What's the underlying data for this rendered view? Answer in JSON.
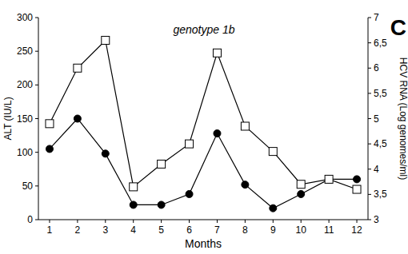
{
  "chart_data": {
    "type": "line",
    "title": "genotype 1b",
    "annotations": [
      "C"
    ],
    "x_label": "Months",
    "y_label": "ALT (IU/L)",
    "y2_label": "HCV RNA (Log genomes/ml)",
    "x": [
      1,
      2,
      3,
      4,
      5,
      6,
      7,
      8,
      9,
      10,
      11,
      12
    ],
    "xlim": [
      0.6,
      12.4
    ],
    "xticks": [
      1,
      2,
      3,
      4,
      5,
      6,
      7,
      8,
      9,
      10,
      11,
      12
    ],
    "ylim": [
      0,
      300
    ],
    "yticks": [
      0,
      50,
      100,
      150,
      200,
      250,
      300
    ],
    "y2lim": [
      3,
      7
    ],
    "y2ticks": [
      3,
      {
        "value": 3.5,
        "label": "3,5"
      },
      4,
      {
        "value": 4.5,
        "label": "4,5"
      },
      5,
      {
        "value": 5.5,
        "label": "5,5"
      },
      6,
      {
        "value": 6.5,
        "label": "6,5"
      },
      7
    ],
    "grid": false,
    "series": [
      {
        "color": "#000000",
        "marker": "circle",
        "values": [
          105,
          150,
          98,
          22,
          22,
          38,
          128,
          52,
          17,
          38,
          60,
          60
        ]
      },
      {
        "color": "#000000",
        "marker": "open-square",
        "axis": "y2",
        "values": [
          4.9,
          6.0,
          6.55,
          3.65,
          4.1,
          4.5,
          6.3,
          4.85,
          4.35,
          3.7,
          3.8,
          3.6
        ]
      }
    ]
  }
}
